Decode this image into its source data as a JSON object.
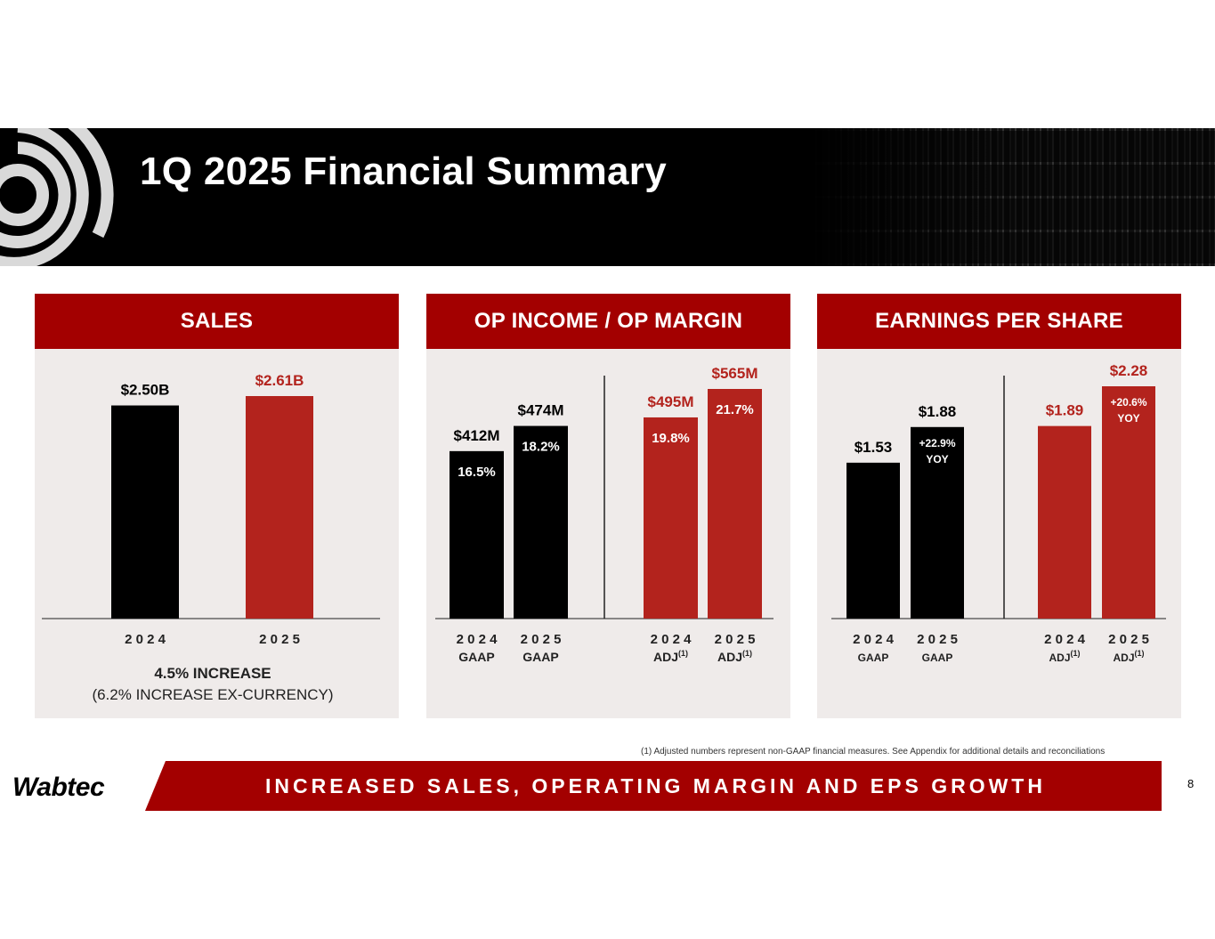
{
  "title": "1Q 2025 Financial Summary",
  "colors": {
    "brand_red": "#a30000",
    "bar_red": "#b3231d",
    "bar_black": "#000000",
    "panel_bg": "#efebea"
  },
  "header": {
    "logo_icon": "wabtec-swirl-icon"
  },
  "chart_data": [
    {
      "type": "bar",
      "title": "SALES",
      "ylim": [
        0,
        2.61
      ],
      "bars": [
        {
          "year": "2 0 2 4",
          "sub": "",
          "value": 2.5,
          "label": "$2.50B",
          "pct": "",
          "color": "black"
        },
        {
          "year": "2 0 2 5",
          "sub": "",
          "value": 2.61,
          "label": "$2.61B",
          "pct": "",
          "color": "red"
        }
      ],
      "note": "4.5% INCREASE",
      "note2": "(6.2% INCREASE EX-CURRENCY)"
    },
    {
      "type": "bar",
      "title": "OP INCOME / OP MARGIN",
      "ylim": [
        0,
        565
      ],
      "bars": [
        {
          "year": "2 0 2 4",
          "sub": "GAAP",
          "value": 412,
          "label": "$412M",
          "pct": "16.5%",
          "color": "black"
        },
        {
          "year": "2 0 2 5",
          "sub": "GAAP",
          "value": 474,
          "label": "$474M",
          "pct": "18.2%",
          "color": "black"
        },
        {
          "year": "2 0 2 4",
          "sub": "ADJ",
          "sup": "(1)",
          "value": 495,
          "label": "$495M",
          "pct": "19.8%",
          "color": "red"
        },
        {
          "year": "2 0 2 5",
          "sub": "ADJ",
          "sup": "(1)",
          "value": 565,
          "label": "$565M",
          "pct": "21.7%",
          "color": "red"
        }
      ]
    },
    {
      "type": "bar",
      "title": "EARNINGS PER SHARE",
      "ylim": [
        0,
        2.28
      ],
      "bars": [
        {
          "year": "2 0 2 4",
          "sub": "GAAP",
          "value": 1.53,
          "label": "$1.53",
          "pct": "",
          "color": "black"
        },
        {
          "year": "2 0 2 5",
          "sub": "GAAP",
          "value": 1.88,
          "label": "$1.88",
          "pct": "+22.9%",
          "pct2": "YOY",
          "color": "black"
        },
        {
          "year": "2 0 2 4",
          "sub": "ADJ",
          "sup": "(1)",
          "value": 1.89,
          "label": "$1.89",
          "pct": "",
          "color": "red"
        },
        {
          "year": "2 0 2 5",
          "sub": "ADJ",
          "sup": "(1)",
          "value": 2.28,
          "label": "$2.28",
          "pct": "+20.6%",
          "pct2": "YOY",
          "color": "red"
        }
      ]
    }
  ],
  "footnote": "(1)  Adjusted numbers represent non-GAAP financial measures.  See Appendix for additional details and reconciliations",
  "banner": {
    "logo": "Wabtec",
    "text": "INCREASED SALES, OPERATING MARGIN AND EPS GROWTH"
  },
  "page_number": "8"
}
